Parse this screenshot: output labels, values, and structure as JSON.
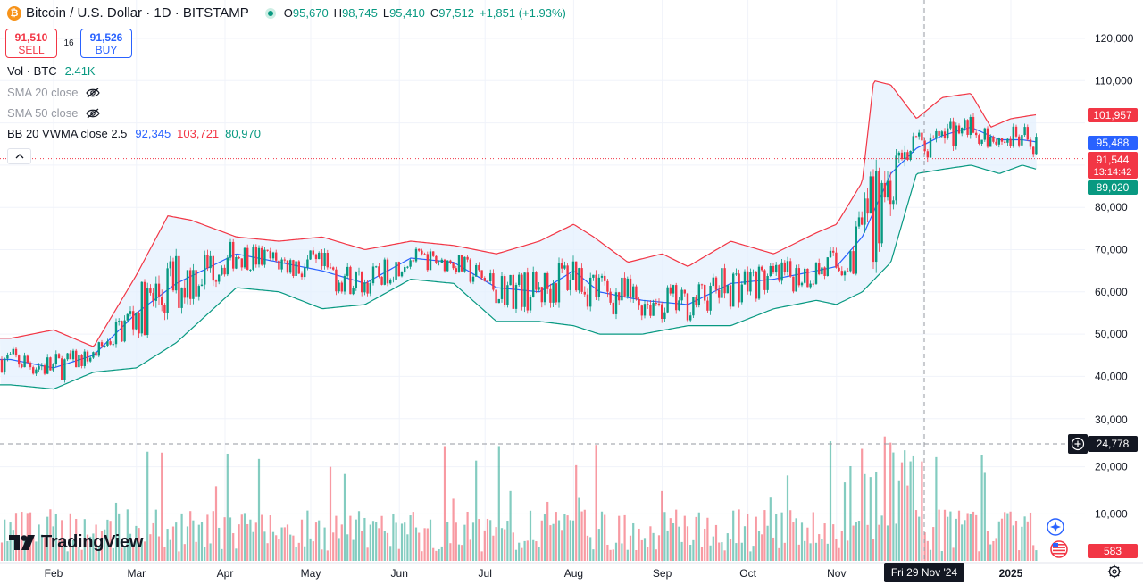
{
  "header": {
    "symbol_title": "Bitcoin / U.S. Dollar · 1D · BITSTAMP",
    "btc_glyph": "₿",
    "ohlc": {
      "open_label": "O",
      "open": "95,670",
      "high_label": "H",
      "high": "98,745",
      "low_label": "L",
      "low": "95,410",
      "close_label": "C",
      "close": "97,512",
      "change": "+1,851 (+1.93%)"
    }
  },
  "trade": {
    "sell_price": "91,510",
    "sell_label": "SELL",
    "spread": "16",
    "buy_price": "91,526",
    "buy_label": "BUY"
  },
  "indicators": {
    "volume": {
      "label": "Vol · BTC",
      "value": "2.41K"
    },
    "sma20": {
      "label": "SMA 20 close"
    },
    "sma50": {
      "label": "SMA 50 close"
    },
    "bb": {
      "label": "BB 20 VWMA close 2.5",
      "basis": "92,345",
      "upper": "103,721",
      "lower": "80,970"
    }
  },
  "price_axis": {
    "ticks": [
      "120,000",
      "110,000",
      "100,000",
      "90,000",
      "80,000",
      "70,000",
      "60,000",
      "50,000",
      "40,000",
      "30,000",
      "20,000",
      "10,000"
    ],
    "upper_band_tag": "101,957",
    "basis_tag": "95,488",
    "last_price_tag": "91,544",
    "countdown": "13:14:42",
    "lower_band_tag": "89,020",
    "crosshair_tag": "24,778",
    "volume_tag": "583"
  },
  "time_axis": {
    "labels": [
      "Feb",
      "Mar",
      "Apr",
      "May",
      "Jun",
      "Jul",
      "Aug",
      "Sep",
      "Oct",
      "Nov",
      "2025"
    ],
    "crosshair_date": "Fri 29 Nov '24"
  },
  "logo": {
    "text": "TradingView"
  },
  "colors": {
    "up": "#089981",
    "down": "#f23645",
    "basis": "#2962ff",
    "upper_band": "#f23645",
    "lower_band": "#089981",
    "band_fill": "#e3effd",
    "grid": "#f0f3fa",
    "text": "#131722"
  },
  "chart_data": {
    "type": "candlestick",
    "interval": "1D",
    "y_range": [
      28000,
      122000
    ],
    "x_range": [
      "2024-01-17",
      "2025-01-10"
    ],
    "series": [
      {
        "name": "BB upper",
        "x": [
          "2024-01-17",
          "2024-02-01",
          "2024-02-15",
          "2024-03-01",
          "2024-03-12",
          "2024-03-20",
          "2024-04-05",
          "2024-04-20",
          "2024-05-05",
          "2024-05-20",
          "2024-06-05",
          "2024-06-20",
          "2024-07-05",
          "2024-07-20",
          "2024-08-01",
          "2024-08-08",
          "2024-08-20",
          "2024-09-01",
          "2024-09-10",
          "2024-09-25",
          "2024-10-10",
          "2024-10-25",
          "2024-11-01",
          "2024-11-10",
          "2024-11-14",
          "2024-11-20",
          "2024-11-29",
          "2024-12-08",
          "2024-12-18",
          "2024-12-25",
          "2025-01-01",
          "2025-01-10"
        ],
        "values": [
          49000,
          51000,
          47000,
          64000,
          78000,
          77000,
          73000,
          72000,
          73000,
          70000,
          72000,
          71000,
          69000,
          72000,
          76000,
          73000,
          67000,
          69000,
          66000,
          72000,
          69000,
          74000,
          76000,
          86000,
          110000,
          109000,
          101000,
          106000,
          107000,
          99000,
          101000,
          101957
        ]
      },
      {
        "name": "BB basis",
        "x": [
          "2024-01-17",
          "2024-02-01",
          "2024-02-15",
          "2024-03-01",
          "2024-03-15",
          "2024-04-05",
          "2024-04-20",
          "2024-05-05",
          "2024-05-20",
          "2024-06-05",
          "2024-06-20",
          "2024-07-05",
          "2024-07-20",
          "2024-08-01",
          "2024-08-10",
          "2024-08-25",
          "2024-09-10",
          "2024-09-25",
          "2024-10-10",
          "2024-10-25",
          "2024-11-01",
          "2024-11-10",
          "2024-11-20",
          "2024-11-29",
          "2024-12-08",
          "2024-12-18",
          "2024-12-28",
          "2025-01-05",
          "2025-01-10"
        ],
        "values": [
          44000,
          42000,
          45000,
          55000,
          62000,
          69000,
          67000,
          65000,
          62000,
          68000,
          67000,
          61000,
          60000,
          65000,
          60000,
          58000,
          57000,
          62000,
          63000,
          65000,
          66000,
          73000,
          88000,
          94000,
          97000,
          99000,
          96000,
          96000,
          95488
        ]
      },
      {
        "name": "BB lower",
        "x": [
          "2024-01-17",
          "2024-02-01",
          "2024-02-15",
          "2024-03-01",
          "2024-03-15",
          "2024-04-05",
          "2024-04-20",
          "2024-05-05",
          "2024-05-20",
          "2024-06-05",
          "2024-06-20",
          "2024-07-05",
          "2024-07-20",
          "2024-08-01",
          "2024-08-10",
          "2024-08-25",
          "2024-09-10",
          "2024-09-25",
          "2024-10-10",
          "2024-10-25",
          "2024-11-01",
          "2024-11-10",
          "2024-11-20",
          "2024-11-29",
          "2024-12-08",
          "2024-12-18",
          "2024-12-28",
          "2025-01-05",
          "2025-01-10"
        ],
        "values": [
          38000,
          37000,
          41000,
          42000,
          48000,
          61000,
          60000,
          56000,
          57000,
          63000,
          62000,
          53000,
          53000,
          52000,
          50000,
          50000,
          52000,
          52000,
          56000,
          58000,
          57000,
          60000,
          67000,
          88000,
          89000,
          90000,
          88000,
          90000,
          89020
        ]
      }
    ],
    "volume_hline": 24778
  }
}
